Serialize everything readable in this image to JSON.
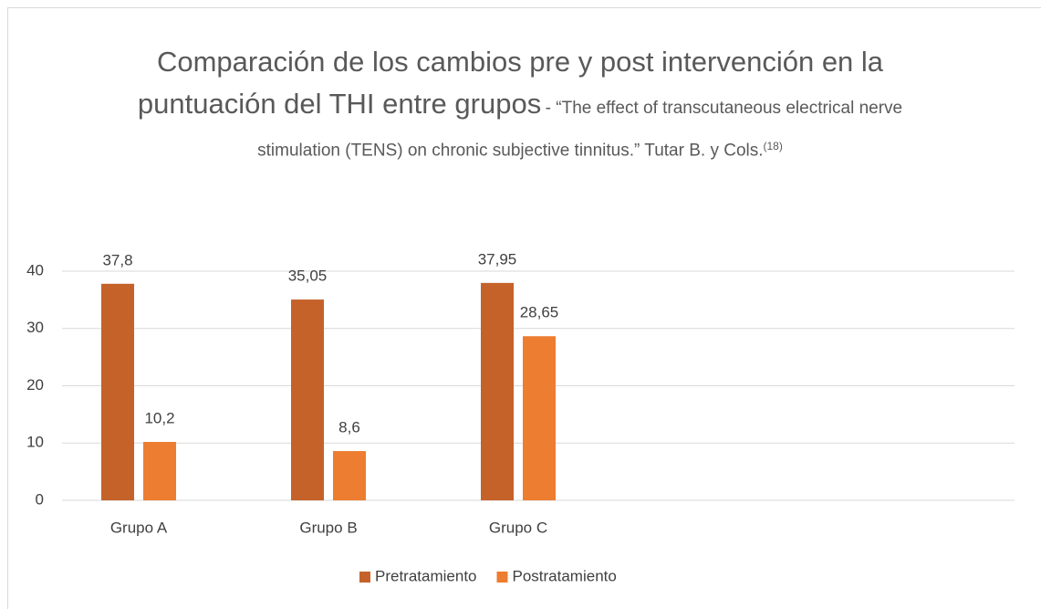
{
  "chart_data": {
    "type": "bar",
    "title": "Comparación de los cambios pre y post intervención en la puntuación del THI entre grupos",
    "subtitle": "- “The effect of transcutaneous electrical nerve stimulation (TENS) on chronic subjective tinnitus.” Tutar B. y Cols.",
    "subtitle_note": "(18)",
    "categories": [
      "Grupo A",
      "Grupo B",
      "Grupo C",
      null,
      null
    ],
    "series": [
      {
        "name": "Pretratamiento",
        "color": "#c5622a",
        "values": [
          37.8,
          35.05,
          37.95,
          null,
          null
        ],
        "value_labels": [
          "37,8",
          "35,05",
          "37,95",
          null,
          null
        ]
      },
      {
        "name": "Postratamiento",
        "color": "#ed7d31",
        "values": [
          10.2,
          8.6,
          28.65,
          null,
          null
        ],
        "value_labels": [
          "10,2",
          "8,6",
          "28,65",
          null,
          null
        ]
      }
    ],
    "ylim": [
      0,
      40
    ],
    "yticks": [
      0,
      10,
      20,
      30,
      40
    ],
    "grid": true,
    "legend": "bottom"
  }
}
